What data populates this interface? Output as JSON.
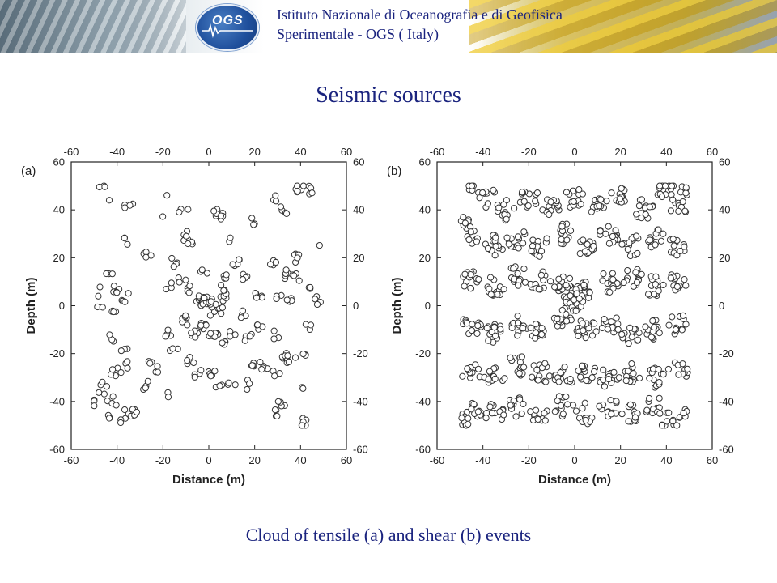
{
  "header": {
    "logo_text": "OGS",
    "institution_line1": "Istituto Nazionale di Oceanografia e di Geofisica",
    "institution_line2": "Sperimentale - OGS ( Italy)"
  },
  "title": "Seismic sources",
  "caption": "Cloud of tensile (a) and shear (b) events",
  "chart_data": [
    {
      "type": "scatter",
      "panel_label": "(a)",
      "xlabel": "Distance (m)",
      "ylabel": "Depth (m)",
      "xlim": [
        -60,
        60
      ],
      "ylim": [
        -60,
        60
      ],
      "xticks": [
        -60,
        -40,
        -20,
        0,
        20,
        40,
        60
      ],
      "yticks": [
        -60,
        -40,
        -20,
        0,
        20,
        40,
        60
      ],
      "marker": "open-circle",
      "clusters": [
        [
          -46,
          50,
          3
        ],
        [
          -35,
          42,
          4
        ],
        [
          -35,
          27,
          3
        ],
        [
          -27,
          21,
          4
        ],
        [
          -20,
          45,
          1
        ],
        [
          -20,
          37,
          1
        ],
        [
          -11,
          40,
          3
        ],
        [
          4,
          39,
          6
        ],
        [
          7,
          37,
          4
        ],
        [
          11,
          27,
          2
        ],
        [
          20,
          35,
          3
        ],
        [
          28,
          45,
          3
        ],
        [
          33,
          40,
          4
        ],
        [
          40,
          49,
          6
        ],
        [
          44,
          48,
          5
        ],
        [
          48,
          27,
          1
        ],
        [
          -45,
          43,
          1
        ],
        [
          -10,
          29,
          5
        ],
        [
          -7,
          26,
          3
        ],
        [
          -15,
          18,
          4
        ],
        [
          -12,
          11,
          3
        ],
        [
          -2,
          14,
          3
        ],
        [
          12,
          18,
          5
        ],
        [
          8,
          12,
          4
        ],
        [
          15,
          11,
          5
        ],
        [
          28,
          18,
          4
        ],
        [
          34,
          13,
          5
        ],
        [
          38,
          20,
          5
        ],
        [
          38,
          12,
          4
        ],
        [
          -48,
          6,
          2
        ],
        [
          -43,
          12,
          3
        ],
        [
          -41,
          7,
          5
        ],
        [
          -35,
          7,
          1
        ],
        [
          -42,
          -2,
          4
        ],
        [
          -47,
          0,
          2
        ],
        [
          -17,
          8,
          3
        ],
        [
          -8,
          7,
          4
        ],
        [
          -4,
          2,
          8
        ],
        [
          0,
          0,
          14
        ],
        [
          4,
          0,
          10
        ],
        [
          8,
          3,
          5
        ],
        [
          5,
          7,
          3
        ],
        [
          22,
          5,
          6
        ],
        [
          30,
          4,
          3
        ],
        [
          36,
          3,
          4
        ],
        [
          44,
          8,
          3
        ],
        [
          47,
          2,
          4
        ],
        [
          -38,
          2,
          3
        ],
        [
          -43,
          -14,
          3
        ],
        [
          -37,
          -18,
          3
        ],
        [
          -38,
          -27,
          2
        ],
        [
          -42,
          -28,
          3
        ],
        [
          -35,
          -24,
          3
        ],
        [
          -26,
          -23,
          3
        ],
        [
          -18,
          -12,
          5
        ],
        [
          -15,
          -18,
          3
        ],
        [
          -10,
          -6,
          6
        ],
        [
          -6,
          -11,
          5
        ],
        [
          -2,
          -8,
          6
        ],
        [
          2,
          -12,
          7
        ],
        [
          6,
          -15,
          4
        ],
        [
          10,
          -12,
          3
        ],
        [
          15,
          -3,
          4
        ],
        [
          22,
          -10,
          5
        ],
        [
          17,
          -13,
          4
        ],
        [
          29,
          -12,
          3
        ],
        [
          32,
          -20,
          4
        ],
        [
          36,
          -22,
          3
        ],
        [
          41,
          -19,
          3
        ],
        [
          44,
          -8,
          3
        ],
        [
          -45,
          -33,
          3
        ],
        [
          -47,
          -36,
          2
        ],
        [
          -43,
          -38,
          2
        ],
        [
          -40,
          -41,
          2
        ],
        [
          -37,
          -45,
          3
        ],
        [
          -33,
          -45,
          5
        ],
        [
          -28,
          -33,
          4
        ],
        [
          -22,
          -27,
          3
        ],
        [
          -18,
          -36,
          2
        ],
        [
          -8,
          -23,
          4
        ],
        [
          -5,
          -28,
          4
        ],
        [
          2,
          -28,
          6
        ],
        [
          5,
          -34,
          3
        ],
        [
          10,
          -32,
          3
        ],
        [
          17,
          -33,
          3
        ],
        [
          20,
          -26,
          6
        ],
        [
          24,
          -25,
          5
        ],
        [
          30,
          -28,
          3
        ],
        [
          35,
          -25,
          2
        ],
        [
          32,
          -40,
          4
        ],
        [
          28,
          -45,
          4
        ],
        [
          40,
          -35,
          2
        ],
        [
          42,
          -49,
          6
        ],
        [
          -45,
          -47,
          3
        ],
        [
          -50,
          -41,
          3
        ],
        [
          -38,
          -48,
          2
        ]
      ]
    },
    {
      "type": "scatter",
      "panel_label": "(b)",
      "xlabel": "Distance (m)",
      "ylabel": "Depth (m)",
      "xlim": [
        -60,
        60
      ],
      "ylim": [
        -60,
        60
      ],
      "xticks": [
        -60,
        -40,
        -20,
        0,
        20,
        40,
        60
      ],
      "yticks": [
        -60,
        -40,
        -20,
        0,
        20,
        40,
        60
      ],
      "marker": "open-circle",
      "clusters": [
        [
          -45,
          50,
          6
        ],
        [
          -38,
          45,
          10
        ],
        [
          -30,
          40,
          12
        ],
        [
          -20,
          45,
          14
        ],
        [
          -10,
          42,
          14
        ],
        [
          0,
          45,
          14
        ],
        [
          10,
          42,
          14
        ],
        [
          20,
          45,
          14
        ],
        [
          30,
          40,
          14
        ],
        [
          40,
          48,
          14
        ],
        [
          45,
          42,
          10
        ],
        [
          -45,
          30,
          10
        ],
        [
          -35,
          25,
          14
        ],
        [
          -25,
          28,
          14
        ],
        [
          -15,
          25,
          14
        ],
        [
          -5,
          30,
          14
        ],
        [
          5,
          25,
          14
        ],
        [
          15,
          30,
          14
        ],
        [
          25,
          25,
          14
        ],
        [
          35,
          28,
          14
        ],
        [
          45,
          25,
          12
        ],
        [
          -45,
          10,
          14
        ],
        [
          -35,
          8,
          14
        ],
        [
          -25,
          12,
          14
        ],
        [
          -15,
          10,
          14
        ],
        [
          -5,
          8,
          18
        ],
        [
          0,
          2,
          22
        ],
        [
          5,
          6,
          18
        ],
        [
          15,
          10,
          14
        ],
        [
          25,
          12,
          14
        ],
        [
          35,
          8,
          14
        ],
        [
          45,
          10,
          14
        ],
        [
          -45,
          -8,
          14
        ],
        [
          -35,
          -12,
          14
        ],
        [
          -25,
          -8,
          14
        ],
        [
          -15,
          -10,
          14
        ],
        [
          -5,
          -5,
          18
        ],
        [
          5,
          -10,
          18
        ],
        [
          15,
          -8,
          14
        ],
        [
          25,
          -12,
          14
        ],
        [
          35,
          -10,
          14
        ],
        [
          45,
          -8,
          12
        ],
        [
          -45,
          -28,
          14
        ],
        [
          -35,
          -30,
          14
        ],
        [
          -25,
          -25,
          14
        ],
        [
          -15,
          -28,
          14
        ],
        [
          -5,
          -30,
          14
        ],
        [
          5,
          -28,
          14
        ],
        [
          15,
          -30,
          14
        ],
        [
          25,
          -28,
          14
        ],
        [
          35,
          -30,
          14
        ],
        [
          45,
          -28,
          12
        ],
        [
          -45,
          -45,
          14
        ],
        [
          -35,
          -45,
          12
        ],
        [
          -25,
          -42,
          12
        ],
        [
          -15,
          -45,
          12
        ],
        [
          -5,
          -42,
          12
        ],
        [
          5,
          -45,
          12
        ],
        [
          15,
          -42,
          12
        ],
        [
          25,
          -45,
          12
        ],
        [
          35,
          -42,
          12
        ],
        [
          42,
          -48,
          10
        ],
        [
          47,
          -45,
          8
        ],
        [
          -48,
          -48,
          8
        ],
        [
          -48,
          35,
          6
        ],
        [
          48,
          48,
          6
        ]
      ]
    }
  ]
}
